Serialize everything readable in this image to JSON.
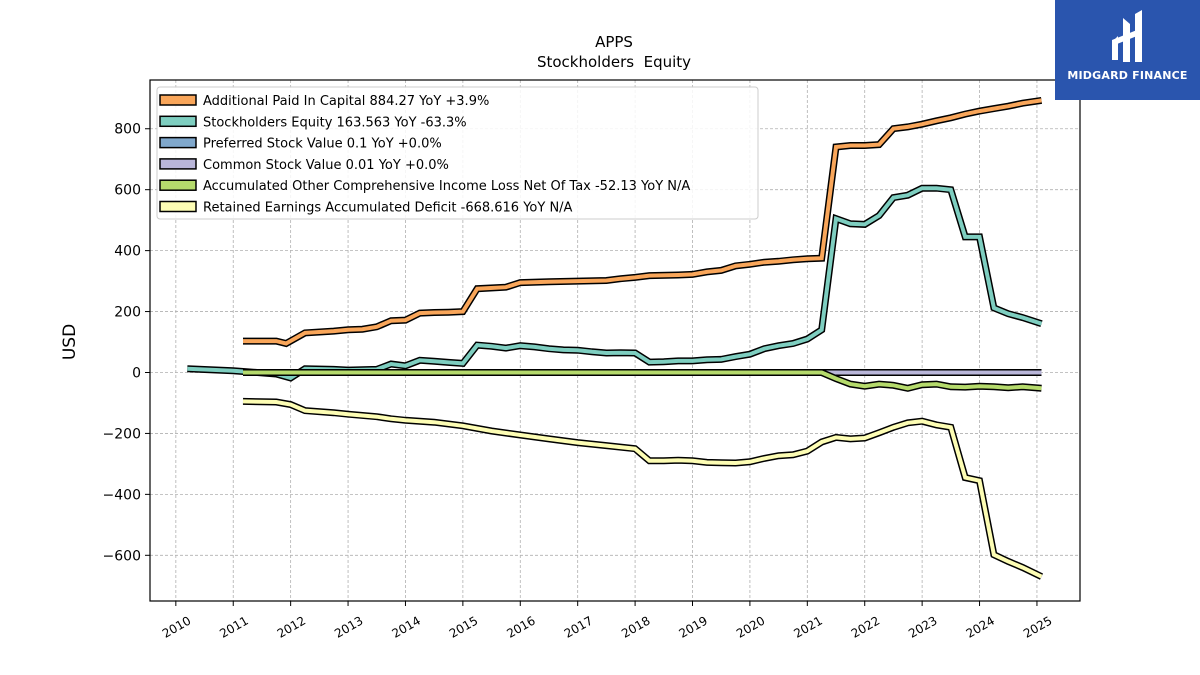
{
  "logo": {
    "text": "MIDGARD FINANCE",
    "background": "#2a55ae"
  },
  "chart_data": {
    "type": "line",
    "title": "APPS",
    "subtitle": "Stockholders  Equity",
    "xlabel": "",
    "ylabel": "USD",
    "xlim": [
      2009.55,
      2025.75
    ],
    "ylim": [
      -750,
      960
    ],
    "x_ticks": [
      2010,
      2011,
      2012,
      2013,
      2014,
      2015,
      2016,
      2017,
      2018,
      2019,
      2020,
      2021,
      2022,
      2023,
      2024,
      2025
    ],
    "y_ticks": [
      -600,
      -400,
      -200,
      0,
      200,
      400,
      600,
      800
    ],
    "y_tick_labels": [
      "−600",
      "−400",
      "−200",
      "0",
      "200",
      "400",
      "600",
      "800"
    ],
    "grid": true,
    "legend_position": "top-left",
    "series": [
      {
        "name": "Additional Paid In Capital",
        "legend": "Additional Paid In Capital  884.27 YoY +3.9%",
        "color": "#f9a65a",
        "points": [
          [
            2011.17,
            103
          ],
          [
            2011.75,
            103
          ],
          [
            2011.92,
            95
          ],
          [
            2012.25,
            130
          ],
          [
            2012.75,
            136
          ],
          [
            2013.0,
            140
          ],
          [
            2013.25,
            142
          ],
          [
            2013.5,
            150
          ],
          [
            2013.75,
            170
          ],
          [
            2014.0,
            172
          ],
          [
            2014.25,
            195
          ],
          [
            2014.5,
            197
          ],
          [
            2014.75,
            198
          ],
          [
            2015.0,
            200
          ],
          [
            2015.25,
            275
          ],
          [
            2015.75,
            280
          ],
          [
            2016.0,
            295
          ],
          [
            2016.5,
            298
          ],
          [
            2017.0,
            300
          ],
          [
            2017.5,
            302
          ],
          [
            2017.75,
            308
          ],
          [
            2018.0,
            312
          ],
          [
            2018.25,
            318
          ],
          [
            2018.75,
            320
          ],
          [
            2019.0,
            322
          ],
          [
            2019.25,
            330
          ],
          [
            2019.5,
            335
          ],
          [
            2019.75,
            350
          ],
          [
            2020.0,
            355
          ],
          [
            2020.25,
            362
          ],
          [
            2020.5,
            365
          ],
          [
            2020.75,
            370
          ],
          [
            2021.0,
            373
          ],
          [
            2021.25,
            375
          ],
          [
            2021.5,
            740
          ],
          [
            2021.75,
            745
          ],
          [
            2022.0,
            745
          ],
          [
            2022.25,
            748
          ],
          [
            2022.5,
            800
          ],
          [
            2022.75,
            806
          ],
          [
            2023.0,
            815
          ],
          [
            2023.25,
            826
          ],
          [
            2023.5,
            836
          ],
          [
            2023.75,
            848
          ],
          [
            2024.0,
            858
          ],
          [
            2024.25,
            866
          ],
          [
            2024.5,
            874
          ],
          [
            2024.75,
            884
          ],
          [
            2025.08,
            893
          ]
        ]
      },
      {
        "name": "Stockholders Equity",
        "legend": "Stockholders Equity  163.563 YoY -63.3%",
        "color": "#7ecec0",
        "points": [
          [
            2010.2,
            12
          ],
          [
            2011.0,
            6
          ],
          [
            2011.75,
            -5
          ],
          [
            2012.0,
            -18
          ],
          [
            2012.25,
            12
          ],
          [
            2012.75,
            10
          ],
          [
            2013.0,
            8
          ],
          [
            2013.5,
            10
          ],
          [
            2013.75,
            28
          ],
          [
            2014.0,
            22
          ],
          [
            2014.25,
            40
          ],
          [
            2014.5,
            37
          ],
          [
            2014.75,
            33
          ],
          [
            2015.0,
            30
          ],
          [
            2015.25,
            90
          ],
          [
            2015.5,
            86
          ],
          [
            2015.75,
            80
          ],
          [
            2016.0,
            88
          ],
          [
            2016.25,
            84
          ],
          [
            2016.5,
            78
          ],
          [
            2016.75,
            74
          ],
          [
            2017.0,
            73
          ],
          [
            2017.25,
            68
          ],
          [
            2017.5,
            64
          ],
          [
            2017.75,
            65
          ],
          [
            2018.0,
            64
          ],
          [
            2018.25,
            34
          ],
          [
            2018.5,
            35
          ],
          [
            2018.75,
            38
          ],
          [
            2019.0,
            38
          ],
          [
            2019.25,
            42
          ],
          [
            2019.5,
            43
          ],
          [
            2019.75,
            52
          ],
          [
            2020.0,
            60
          ],
          [
            2020.25,
            78
          ],
          [
            2020.5,
            88
          ],
          [
            2020.75,
            95
          ],
          [
            2021.0,
            110
          ],
          [
            2021.25,
            140
          ],
          [
            2021.5,
            505
          ],
          [
            2021.75,
            488
          ],
          [
            2022.0,
            486
          ],
          [
            2022.25,
            515
          ],
          [
            2022.5,
            574
          ],
          [
            2022.75,
            582
          ],
          [
            2023.0,
            605
          ],
          [
            2023.25,
            605
          ],
          [
            2023.5,
            600
          ],
          [
            2023.75,
            445
          ],
          [
            2024.0,
            445
          ],
          [
            2024.25,
            212
          ],
          [
            2024.5,
            193
          ],
          [
            2024.75,
            180
          ],
          [
            2025.08,
            160
          ]
        ]
      },
      {
        "name": "Preferred Stock Value",
        "legend": "Preferred Stock Value  0.1 YoY +0.0%",
        "color": "#80a8cc",
        "points": [
          [
            2011.17,
            0.1
          ],
          [
            2025.08,
            0.1
          ]
        ]
      },
      {
        "name": "Common Stock Value",
        "legend": "Common Stock Value  0.01 YoY +0.0%",
        "color": "#b9b6d9",
        "points": [
          [
            2011.17,
            0.01
          ],
          [
            2025.08,
            0.01
          ]
        ]
      },
      {
        "name": "Accumulated Other Comprehensive Income Loss Net Of Tax",
        "legend": "Accumulated Other Comprehensive Income Loss Net Of Tax  -52.13 YoY N/A",
        "color": "#b5da6c",
        "points": [
          [
            2011.17,
            0
          ],
          [
            2021.25,
            0
          ],
          [
            2021.5,
            -20
          ],
          [
            2021.75,
            -38
          ],
          [
            2022.0,
            -45
          ],
          [
            2022.25,
            -38
          ],
          [
            2022.5,
            -42
          ],
          [
            2022.75,
            -52
          ],
          [
            2023.0,
            -40
          ],
          [
            2023.25,
            -38
          ],
          [
            2023.5,
            -47
          ],
          [
            2023.75,
            -48
          ],
          [
            2024.0,
            -45
          ],
          [
            2024.25,
            -47
          ],
          [
            2024.5,
            -50
          ],
          [
            2024.75,
            -47
          ],
          [
            2025.08,
            -52
          ]
        ]
      },
      {
        "name": "Retained Earnings Accumulated Deficit",
        "legend": "Retained Earnings Accumulated Deficit  -668.616 YoY N/A",
        "color": "#fdfdb4",
        "points": [
          [
            2011.17,
            -95
          ],
          [
            2011.75,
            -97
          ],
          [
            2012.0,
            -105
          ],
          [
            2012.25,
            -125
          ],
          [
            2012.75,
            -132
          ],
          [
            2013.0,
            -137
          ],
          [
            2013.5,
            -145
          ],
          [
            2013.75,
            -152
          ],
          [
            2014.0,
            -157
          ],
          [
            2014.5,
            -163
          ],
          [
            2015.0,
            -175
          ],
          [
            2015.5,
            -192
          ],
          [
            2016.0,
            -205
          ],
          [
            2016.5,
            -218
          ],
          [
            2017.0,
            -230
          ],
          [
            2017.5,
            -240
          ],
          [
            2018.0,
            -250
          ],
          [
            2018.25,
            -290
          ],
          [
            2018.5,
            -290
          ],
          [
            2018.75,
            -288
          ],
          [
            2019.0,
            -290
          ],
          [
            2019.25,
            -295
          ],
          [
            2019.5,
            -296
          ],
          [
            2019.75,
            -297
          ],
          [
            2020.0,
            -293
          ],
          [
            2020.25,
            -282
          ],
          [
            2020.5,
            -273
          ],
          [
            2020.75,
            -270
          ],
          [
            2021.0,
            -258
          ],
          [
            2021.25,
            -228
          ],
          [
            2021.5,
            -213
          ],
          [
            2021.75,
            -218
          ],
          [
            2022.0,
            -215
          ],
          [
            2022.25,
            -198
          ],
          [
            2022.5,
            -180
          ],
          [
            2022.75,
            -165
          ],
          [
            2023.0,
            -160
          ],
          [
            2023.25,
            -172
          ],
          [
            2023.5,
            -180
          ],
          [
            2023.75,
            -345
          ],
          [
            2024.0,
            -355
          ],
          [
            2024.25,
            -598
          ],
          [
            2024.5,
            -620
          ],
          [
            2024.75,
            -640
          ],
          [
            2025.08,
            -670
          ]
        ]
      }
    ]
  }
}
